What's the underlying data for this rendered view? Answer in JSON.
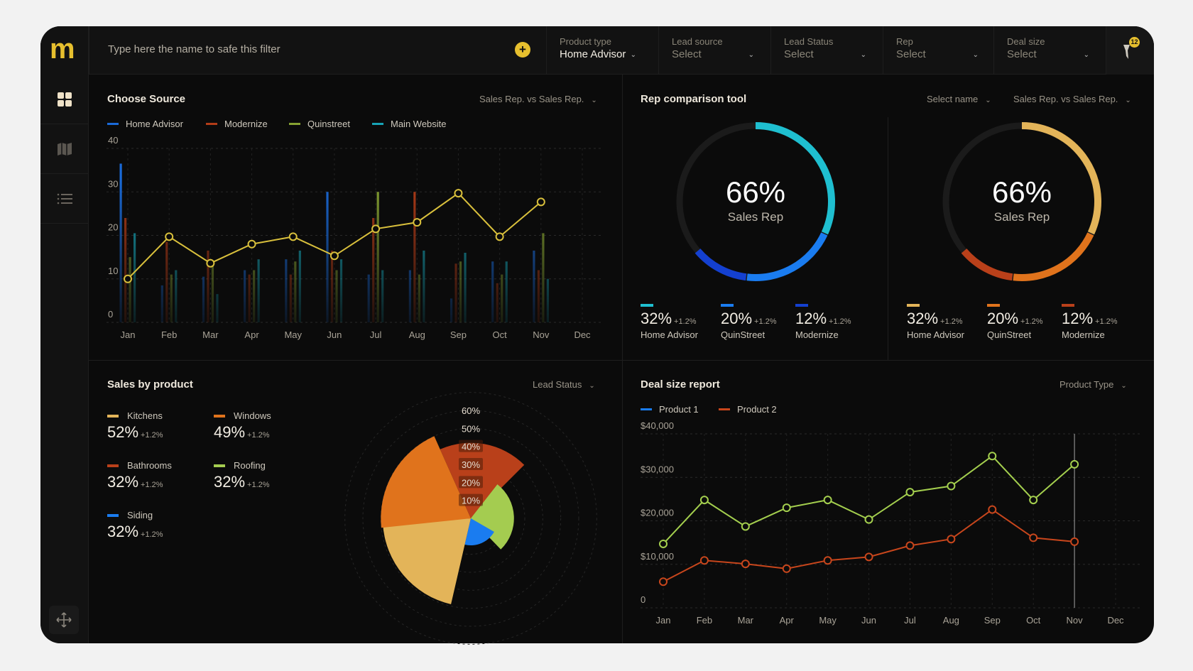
{
  "header": {
    "logo": "m",
    "filter_placeholder": "Type here the name to safe this filter",
    "filters": [
      {
        "label": "Product type",
        "value": "Home Advisor",
        "selected": true
      },
      {
        "label": "Lead source",
        "value": "Select"
      },
      {
        "label": "Lead Status",
        "value": "Select"
      },
      {
        "label": "Rep",
        "value": "Select"
      },
      {
        "label": "Deal size",
        "value": "Select"
      }
    ],
    "filter_badge": "12"
  },
  "sidebar": {
    "items": [
      {
        "icon": "grid-icon",
        "active": true
      },
      {
        "icon": "map-icon"
      },
      {
        "icon": "list-icon"
      }
    ],
    "bottom_icon": "move-icon"
  },
  "colors": {
    "accent": "#e6bf2e",
    "home_advisor": "#1a6ad8",
    "modernize": "#b23c18",
    "quinstreet": "#86a232",
    "main_website": "#17a3b5"
  },
  "choose_source": {
    "title": "Choose Source",
    "dropdown": "Sales Rep. vs Sales Rep."
  },
  "rep_tool": {
    "title": "Rep comparison tool",
    "dropdown_name": "Select name",
    "dropdown": "Sales Rep. vs Sales Rep.",
    "donuts": [
      {
        "value": "66%",
        "label": "Sales Rep",
        "colors": [
          "#1fbfd0",
          "#1a7cf0",
          "#1440d0"
        ],
        "items": [
          {
            "pct": 32,
            "pct_label": "32%",
            "delta": "+1.2%",
            "name": "Home Advisor"
          },
          {
            "pct": 20,
            "pct_label": "20%",
            "delta": "+1.2%",
            "name": "QuinStreet"
          },
          {
            "pct": 12,
            "pct_label": "12%",
            "delta": "+1.2%",
            "name": "Modernize"
          }
        ]
      },
      {
        "value": "66%",
        "label": "Sales Rep",
        "colors": [
          "#e3b459",
          "#e0731c",
          "#b9401a"
        ],
        "items": [
          {
            "pct": 32,
            "pct_label": "32%",
            "delta": "+1.2%",
            "name": "Home Advisor"
          },
          {
            "pct": 20,
            "pct_label": "20%",
            "delta": "+1.2%",
            "name": "QuinStreet"
          },
          {
            "pct": 12,
            "pct_label": "12%",
            "delta": "+1.2%",
            "name": "Modernize"
          }
        ]
      }
    ]
  },
  "sales_by_product": {
    "title": "Sales by product",
    "dropdown": "Lead Status",
    "items": [
      {
        "name": "Kitchens",
        "pct": "52%",
        "delta": "+1.2%",
        "color": "#e3b459"
      },
      {
        "name": "Windows",
        "pct": "49%",
        "delta": "+1.2%",
        "color": "#e0731c"
      },
      {
        "name": "Bathrooms",
        "pct": "32%",
        "delta": "+1.2%",
        "color": "#b9401a"
      },
      {
        "name": "Roofing",
        "pct": "32%",
        "delta": "+1.2%",
        "color": "#a4cc50"
      },
      {
        "name": "Siding",
        "pct": "32%",
        "delta": "+1.2%",
        "color": "#1a7cf0"
      }
    ]
  },
  "deal_size": {
    "title": "Deal size report",
    "dropdown": "Product Type"
  },
  "chart_data": [
    {
      "type": "bar",
      "categories": [
        "Jan",
        "Feb",
        "Mar",
        "Apr",
        "May",
        "Jun",
        "Jul",
        "Aug",
        "Sep",
        "Oct",
        "Nov",
        "Dec"
      ],
      "ylim": [
        0,
        40
      ],
      "yticks": [
        "0",
        "10",
        "20",
        "30",
        "40"
      ],
      "grid": true,
      "legend": "top-left",
      "series": [
        {
          "name": "Home Advisor",
          "color": "#1a6ad8",
          "values": [
            36.5,
            8.5,
            10.5,
            12,
            14.5,
            30,
            11,
            12,
            5.5,
            14,
            16.5,
            null
          ]
        },
        {
          "name": "Modernize",
          "color": "#b23c18",
          "values": [
            24,
            18.5,
            16.5,
            11,
            11,
            16.5,
            24,
            30,
            13.5,
            9,
            12,
            null
          ]
        },
        {
          "name": "Quinstreet",
          "color": "#86a232",
          "values": [
            15,
            11,
            13,
            12,
            14,
            12,
            30,
            11,
            14,
            11,
            20.5,
            null
          ]
        },
        {
          "name": "Main Website",
          "color": "#17a3b5",
          "values": [
            20.5,
            12,
            6.5,
            14.5,
            16.5,
            14.5,
            12,
            16.5,
            16,
            14,
            10,
            null
          ]
        }
      ],
      "line": {
        "color": "#d9c03c",
        "values": [
          10,
          19.7,
          13.6,
          18,
          19.7,
          15.3,
          21.5,
          23,
          29.7,
          19.7,
          27.7,
          null
        ]
      }
    },
    {
      "type": "pie",
      "subtype": "polar-area",
      "rlim": [
        0,
        60
      ],
      "rticks": [
        "10%",
        "20%",
        "30%",
        "40%",
        "50%",
        "60%"
      ],
      "slices": [
        {
          "name": "Bathrooms",
          "radius": 42,
          "start_deg": -24,
          "end_deg": 45,
          "color": "#b9401a"
        },
        {
          "name": "Roofing",
          "radius": 24,
          "start_deg": 38,
          "end_deg": 136,
          "color": "#a4cc50"
        },
        {
          "name": "Siding",
          "radius": 15,
          "start_deg": 120,
          "end_deg": 193,
          "color": "#1a7cf0"
        },
        {
          "name": "Kitchens",
          "radius": 49,
          "start_deg": 193,
          "end_deg": 267,
          "color": "#e3b459"
        },
        {
          "name": "Windows",
          "radius": 50,
          "start_deg": 264,
          "end_deg": 336,
          "color": "#e0731c"
        }
      ]
    },
    {
      "type": "line",
      "categories": [
        "Jan",
        "Feb",
        "Mar",
        "Apr",
        "May",
        "Jun",
        "Jul",
        "Aug",
        "Sep",
        "Oct",
        "Nov",
        "Dec"
      ],
      "ylim": [
        0,
        40000
      ],
      "yticks": [
        "0",
        "$10,000",
        "$20,000",
        "$30,000",
        "$40,000"
      ],
      "grid": true,
      "legend": "top-left",
      "highlight_category": "Nov",
      "series": [
        {
          "name": "Product 1",
          "legend_color": "#1a7cf0",
          "color": "#a4cf4e",
          "values": [
            14700,
            24800,
            18700,
            23000,
            24800,
            20300,
            26600,
            28000,
            34900,
            24800,
            33000,
            null
          ]
        },
        {
          "name": "Product 2",
          "legend_color": "#c8461c",
          "color": "#c8461c",
          "values": [
            6000,
            10900,
            10100,
            9000,
            10900,
            11700,
            14300,
            15800,
            22600,
            16100,
            15200,
            null
          ]
        }
      ]
    }
  ]
}
